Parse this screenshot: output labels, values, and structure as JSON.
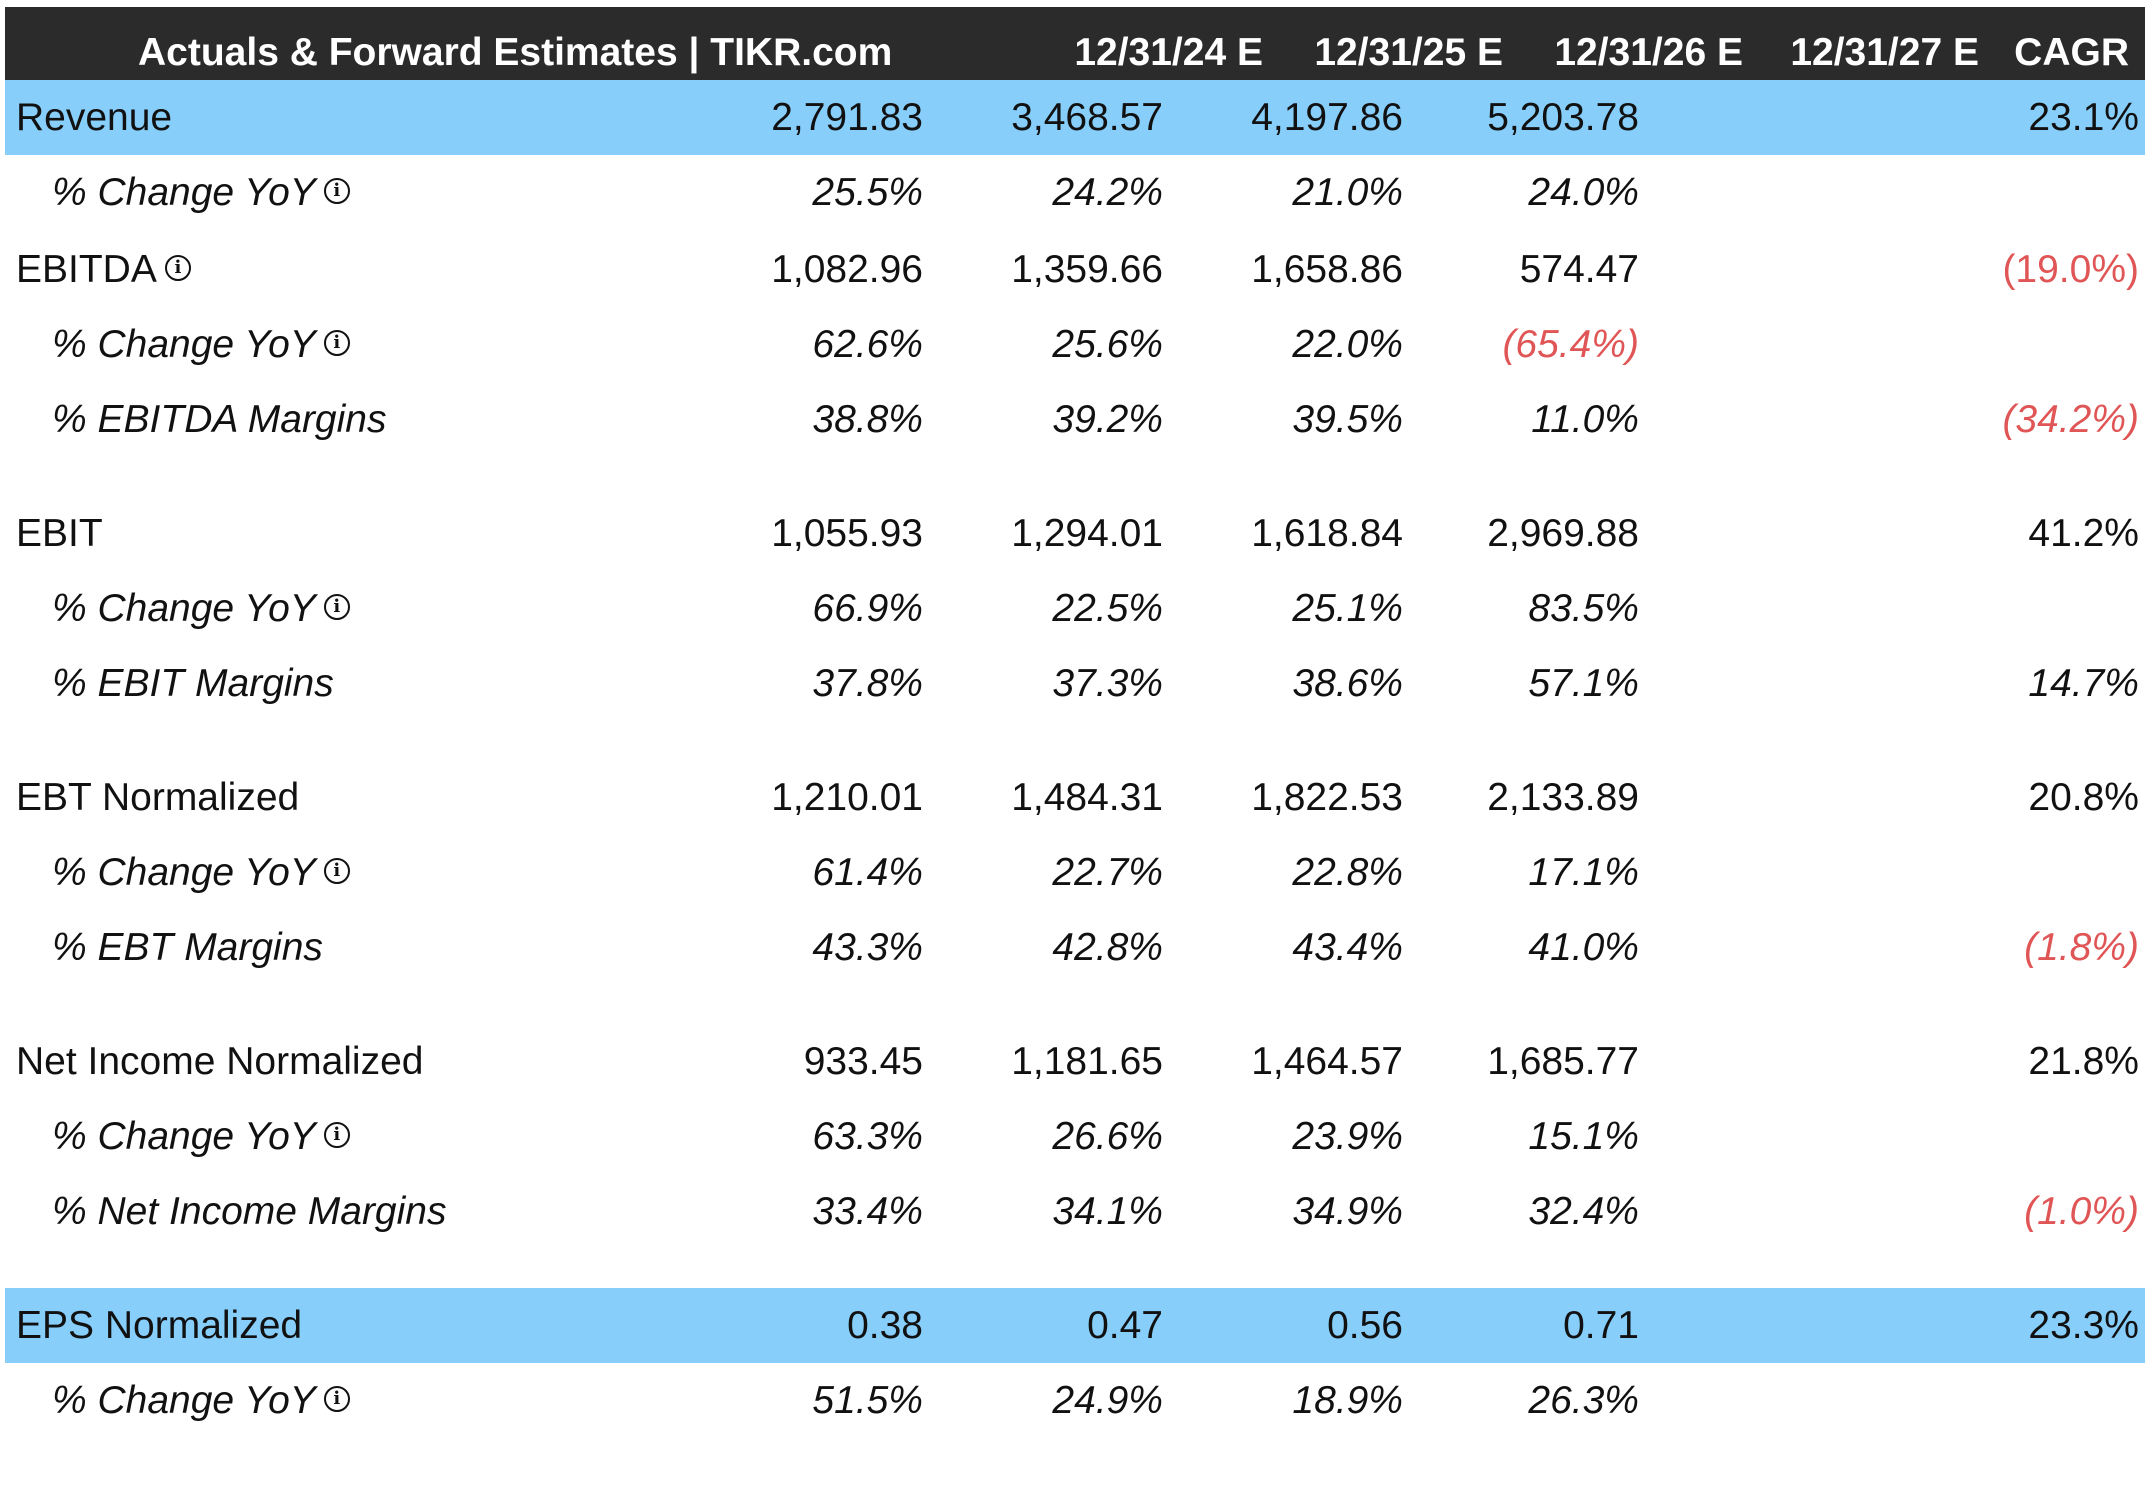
{
  "header": {
    "title": "Actuals & Forward Estimates | TIKR.com",
    "columns": [
      "12/31/24 E",
      "12/31/25 E",
      "12/31/26 E",
      "12/31/27 E",
      "CAGR"
    ]
  },
  "rows": [
    {
      "label": "Revenue",
      "type": "main",
      "highlight": true,
      "info": false,
      "values": [
        "2,791.83",
        "3,468.57",
        "4,197.86",
        "5,203.78",
        "23.1%"
      ],
      "negative": [
        false,
        false,
        false,
        false,
        false
      ]
    },
    {
      "label": "% Change YoY",
      "type": "sub",
      "highlight": false,
      "info": true,
      "values": [
        "25.5%",
        "24.2%",
        "21.0%",
        "24.0%",
        ""
      ],
      "negative": [
        false,
        false,
        false,
        false,
        false
      ]
    },
    {
      "label": "EBITDA",
      "type": "main",
      "highlight": false,
      "info": true,
      "values": [
        "1,082.96",
        "1,359.66",
        "1,658.86",
        "574.47",
        "(19.0%)"
      ],
      "negative": [
        false,
        false,
        false,
        false,
        true
      ]
    },
    {
      "label": "% Change YoY",
      "type": "sub",
      "highlight": false,
      "info": true,
      "values": [
        "62.6%",
        "25.6%",
        "22.0%",
        "(65.4%)",
        ""
      ],
      "negative": [
        false,
        false,
        false,
        true,
        false
      ]
    },
    {
      "label": "% EBITDA Margins",
      "type": "sub",
      "highlight": false,
      "info": false,
      "values": [
        "38.8%",
        "39.2%",
        "39.5%",
        "11.0%",
        "(34.2%)"
      ],
      "negative": [
        false,
        false,
        false,
        false,
        true
      ]
    },
    {
      "label": "EBIT",
      "type": "main",
      "highlight": false,
      "info": false,
      "values": [
        "1,055.93",
        "1,294.01",
        "1,618.84",
        "2,969.88",
        "41.2%"
      ],
      "negative": [
        false,
        false,
        false,
        false,
        false
      ]
    },
    {
      "label": "% Change YoY",
      "type": "sub",
      "highlight": false,
      "info": true,
      "values": [
        "66.9%",
        "22.5%",
        "25.1%",
        "83.5%",
        ""
      ],
      "negative": [
        false,
        false,
        false,
        false,
        false
      ]
    },
    {
      "label": "% EBIT Margins",
      "type": "sub",
      "highlight": false,
      "info": false,
      "values": [
        "37.8%",
        "37.3%",
        "38.6%",
        "57.1%",
        "14.7%"
      ],
      "negative": [
        false,
        false,
        false,
        false,
        false
      ]
    },
    {
      "label": "EBT Normalized",
      "type": "main",
      "highlight": false,
      "info": false,
      "values": [
        "1,210.01",
        "1,484.31",
        "1,822.53",
        "2,133.89",
        "20.8%"
      ],
      "negative": [
        false,
        false,
        false,
        false,
        false
      ]
    },
    {
      "label": "% Change YoY",
      "type": "sub",
      "highlight": false,
      "info": true,
      "values": [
        "61.4%",
        "22.7%",
        "22.8%",
        "17.1%",
        ""
      ],
      "negative": [
        false,
        false,
        false,
        false,
        false
      ]
    },
    {
      "label": "% EBT Margins",
      "type": "sub",
      "highlight": false,
      "info": false,
      "values": [
        "43.3%",
        "42.8%",
        "43.4%",
        "41.0%",
        "(1.8%)"
      ],
      "negative": [
        false,
        false,
        false,
        false,
        true
      ]
    },
    {
      "label": "Net Income Normalized",
      "type": "main",
      "highlight": false,
      "info": false,
      "values": [
        "933.45",
        "1,181.65",
        "1,464.57",
        "1,685.77",
        "21.8%"
      ],
      "negative": [
        false,
        false,
        false,
        false,
        false
      ]
    },
    {
      "label": "% Change YoY",
      "type": "sub",
      "highlight": false,
      "info": true,
      "values": [
        "63.3%",
        "26.6%",
        "23.9%",
        "15.1%",
        ""
      ],
      "negative": [
        false,
        false,
        false,
        false,
        false
      ]
    },
    {
      "label": "% Net Income Margins",
      "type": "sub",
      "highlight": false,
      "info": false,
      "values": [
        "33.4%",
        "34.1%",
        "34.9%",
        "32.4%",
        "(1.0%)"
      ],
      "negative": [
        false,
        false,
        false,
        false,
        true
      ]
    },
    {
      "label": "EPS Normalized",
      "type": "main",
      "highlight": true,
      "info": false,
      "values": [
        "0.38",
        "0.47",
        "0.56",
        "0.71",
        "23.3%"
      ],
      "negative": [
        false,
        false,
        false,
        false,
        false
      ]
    },
    {
      "label": "% Change YoY",
      "type": "sub",
      "highlight": false,
      "info": true,
      "values": [
        "51.5%",
        "24.9%",
        "18.9%",
        "26.3%",
        ""
      ],
      "negative": [
        false,
        false,
        false,
        false,
        false
      ]
    }
  ],
  "icons": {
    "info": "info-circle-icon"
  },
  "colors": {
    "header_bg": "#2b2b2b",
    "highlight_bg": "#87cefa",
    "negative": "#e05555"
  }
}
